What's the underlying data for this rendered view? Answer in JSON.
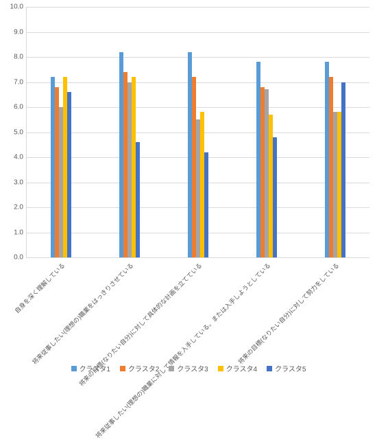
{
  "chart": {
    "type": "bar",
    "ylim": [
      0,
      10
    ],
    "ytick_step": 1.0,
    "ytick_decimals": 1,
    "grid_color": "#d9d9d9",
    "background_color": "#ffffff",
    "label_fontsize": 10,
    "series": [
      {
        "name": "クラスタ1",
        "color": "#5b9bd5"
      },
      {
        "name": "クラスタ2",
        "color": "#ed7d31"
      },
      {
        "name": "クラスタ3",
        "color": "#a5a5a5"
      },
      {
        "name": "クラスタ4",
        "color": "#ffc000"
      },
      {
        "name": "クラスタ5",
        "color": "#4472c4"
      }
    ],
    "categories": [
      "自身を深く理解している",
      "将来従事したい(理想の)職業をはっきりさせている",
      "将来の目標(なりたい自分)に対して具体的な計画を立てている",
      "将来従事したい(理想の)職業に対して情報を入手している。または入手しようとしている",
      "将来の目標(なりたい自分)に対して努力をしている"
    ],
    "values": [
      [
        7.2,
        6.8,
        6.0,
        7.2,
        6.6
      ],
      [
        8.2,
        7.4,
        7.0,
        7.2,
        4.6
      ],
      [
        8.2,
        7.2,
        5.5,
        5.8,
        4.2
      ],
      [
        7.8,
        6.8,
        6.7,
        5.7,
        4.8
      ],
      [
        7.8,
        7.2,
        5.8,
        5.8,
        7.0
      ]
    ]
  }
}
